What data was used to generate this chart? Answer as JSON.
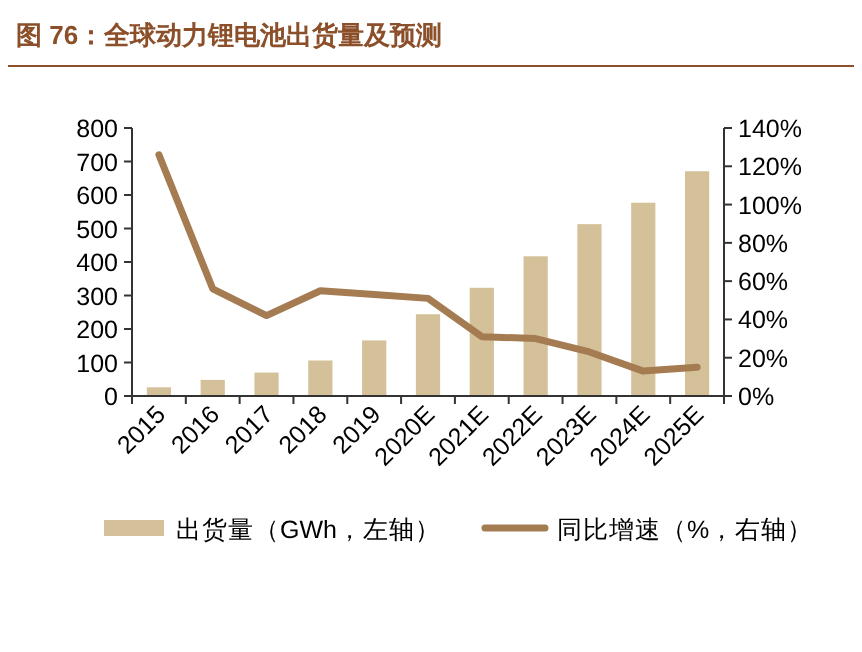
{
  "chart_data": {
    "type": "bar",
    "title": "图 76：全球动力锂电池出货量及预测",
    "categories": [
      "2015",
      "2016",
      "2017",
      "2018",
      "2019",
      "2020E",
      "2021E",
      "2022E",
      "2023E",
      "2024E",
      "2025E"
    ],
    "series": [
      {
        "name": "出货量（GWh，左轴）",
        "color": "#d4c199",
        "values": [
          26,
          48,
          70,
          106,
          166,
          244,
          323,
          417,
          513,
          577,
          671
        ]
      },
      {
        "name": "同比增速（%，右轴）",
        "type": "line",
        "axis": "y2",
        "color": "#a57c52",
        "values": [
          126,
          56,
          42,
          55,
          53,
          51,
          31,
          30,
          23,
          13,
          15
        ]
      }
    ],
    "ylim": [
      0,
      800
    ],
    "yticks": [
      0,
      100,
      200,
      300,
      400,
      500,
      600,
      700,
      800
    ],
    "y2lim": [
      0,
      140
    ],
    "y2ticks": [
      {
        "value": 0,
        "label": "0%"
      },
      {
        "value": 20,
        "label": "20%"
      },
      {
        "value": 40,
        "label": "40%"
      },
      {
        "value": 60,
        "label": "60%"
      },
      {
        "value": 80,
        "label": "80%"
      },
      {
        "value": 100,
        "label": "100%"
      },
      {
        "value": 120,
        "label": "120%"
      },
      {
        "value": 140,
        "label": "140%"
      }
    ],
    "grid": false,
    "legend": "bottom",
    "marker": "none",
    "line_style": "solid"
  }
}
